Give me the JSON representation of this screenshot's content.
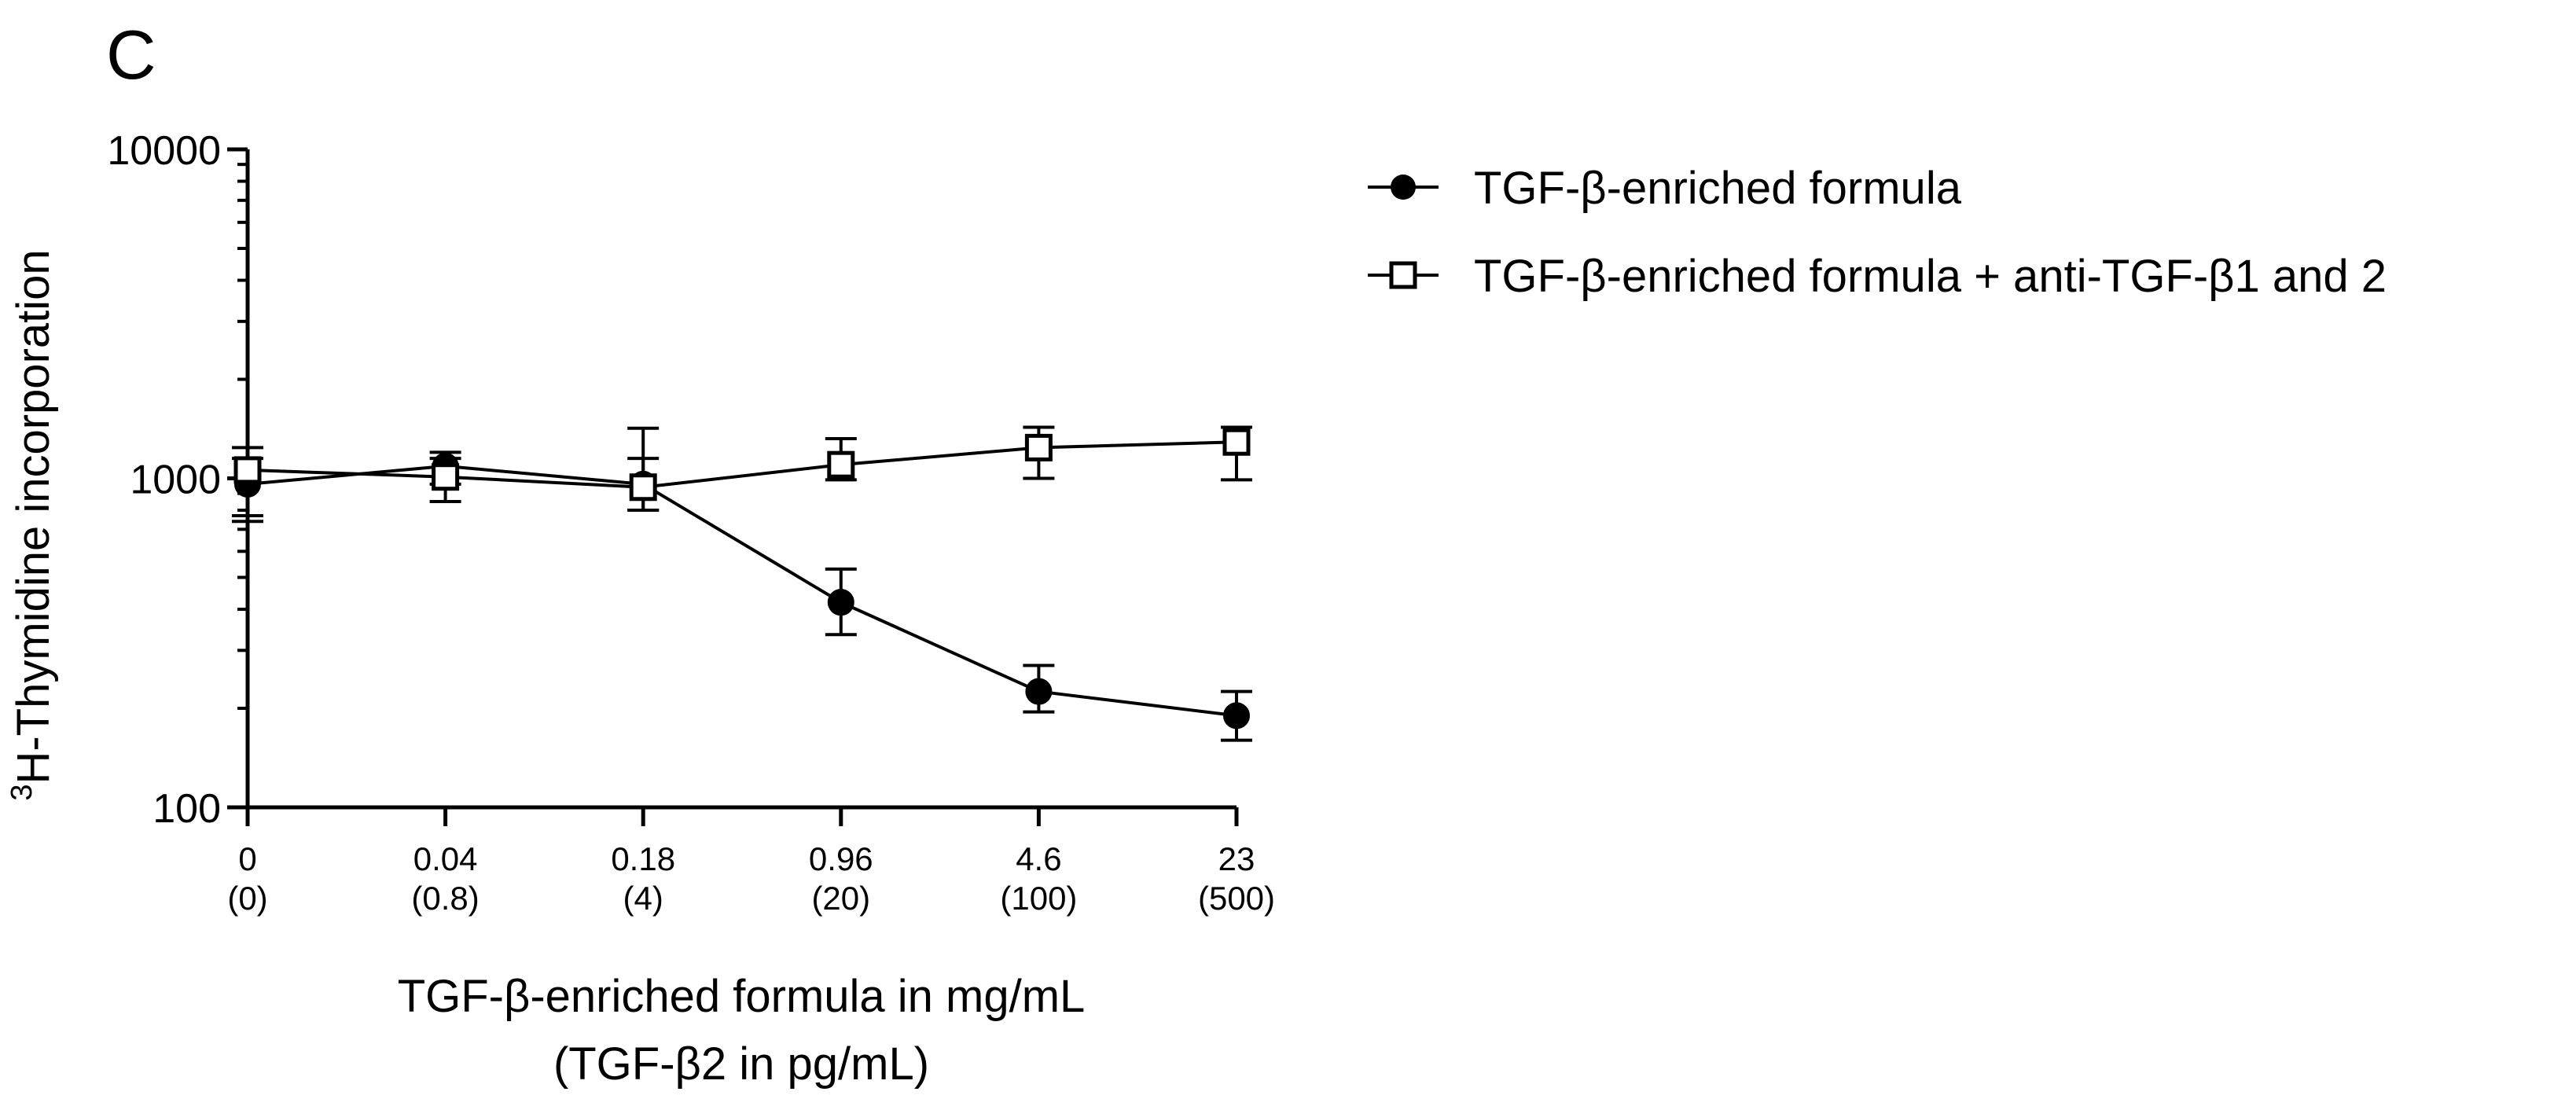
{
  "panel_label": "C",
  "chart_data": {
    "type": "line",
    "title": "",
    "xlabel_line1": "TGF-β-enriched formula in mg/mL",
    "xlabel_line2": "(TGF-β2 in pg/mL)",
    "ylabel_superscript": "3",
    "ylabel": "H-Thymidine incorporation",
    "yscale": "log",
    "ylim": [
      100,
      10000
    ],
    "y_ticks": [
      "100",
      "1000",
      "10000"
    ],
    "categories": [
      "0",
      "0.04",
      "0.18",
      "0.96",
      "4.6",
      "23"
    ],
    "categories_secondary": [
      "(0)",
      "(0.8)",
      "(4)",
      "(20)",
      "(100)",
      "(500)"
    ],
    "legend_position": "top-right",
    "series": [
      {
        "name": "TGF-β-enriched formula",
        "marker": "filled-circle",
        "values": [
          960,
          1090,
          960,
          420,
          225,
          190
        ],
        "err_low": [
          740,
          960,
          800,
          335,
          195,
          160
        ],
        "err_high": [
          1150,
          1200,
          1150,
          530,
          270,
          225
        ]
      },
      {
        "name": "TGF-β-enriched formula + anti-TGF-β1 and 2",
        "marker": "open-square",
        "values": [
          1060,
          1010,
          940,
          1100,
          1240,
          1290
        ],
        "err_low": [
          770,
          850,
          800,
          990,
          1000,
          990
        ],
        "err_high": [
          1240,
          1150,
          1420,
          1320,
          1430,
          1430
        ]
      }
    ]
  }
}
